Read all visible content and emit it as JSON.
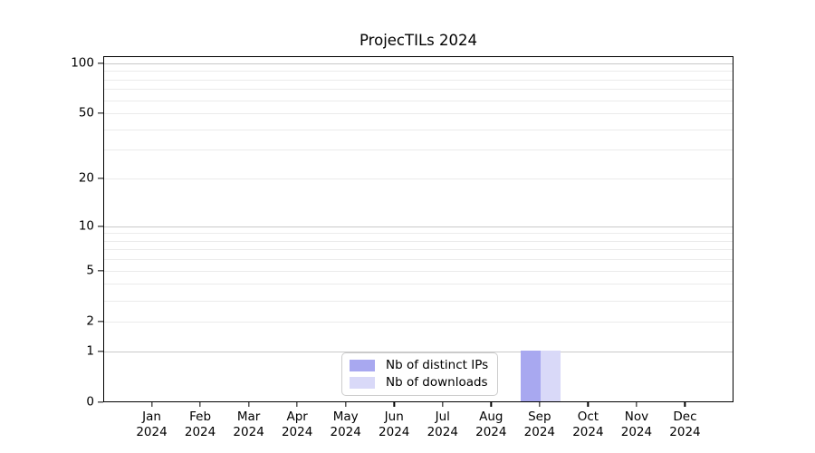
{
  "title": "ProjecTILs 2024",
  "colors": {
    "distinct_ips_bar": "#a8a8f0",
    "downloads_bar": "#d9d9f8",
    "grid_major": "#c9c9c9",
    "grid_minor": "#ebebeb",
    "axis": "#000000",
    "legend_border": "#cccccc"
  },
  "chart_data": {
    "type": "bar",
    "title": "ProjecTILs 2024",
    "categories": [
      "Jan 2024",
      "Feb 2024",
      "Mar 2024",
      "Apr 2024",
      "May 2024",
      "Jun 2024",
      "Jul 2024",
      "Aug 2024",
      "Sep 2024",
      "Oct 2024",
      "Nov 2024",
      "Dec 2024"
    ],
    "series": [
      {
        "name": "Nb of distinct IPs",
        "color": "#a8a8f0",
        "values": [
          0,
          0,
          0,
          0,
          0,
          0,
          0,
          0,
          1,
          0,
          0,
          0
        ]
      },
      {
        "name": "Nb of downloads",
        "color": "#d9d9f8",
        "values": [
          0,
          0,
          0,
          0,
          0,
          0,
          0,
          0,
          1,
          0,
          0,
          0
        ]
      }
    ],
    "xlabel": "",
    "ylabel": "",
    "yscale": "log1p",
    "ylim": [
      0,
      110
    ],
    "y_ticks": [
      0,
      1,
      2,
      5,
      10,
      20,
      50,
      100
    ],
    "grid_major": [
      1,
      10,
      100
    ],
    "grid_minor": [
      2,
      3,
      4,
      5,
      6,
      7,
      8,
      9,
      20,
      30,
      40,
      50,
      60,
      70,
      80,
      90
    ],
    "grid": "horizontal",
    "legend_position": "bottom-center"
  }
}
